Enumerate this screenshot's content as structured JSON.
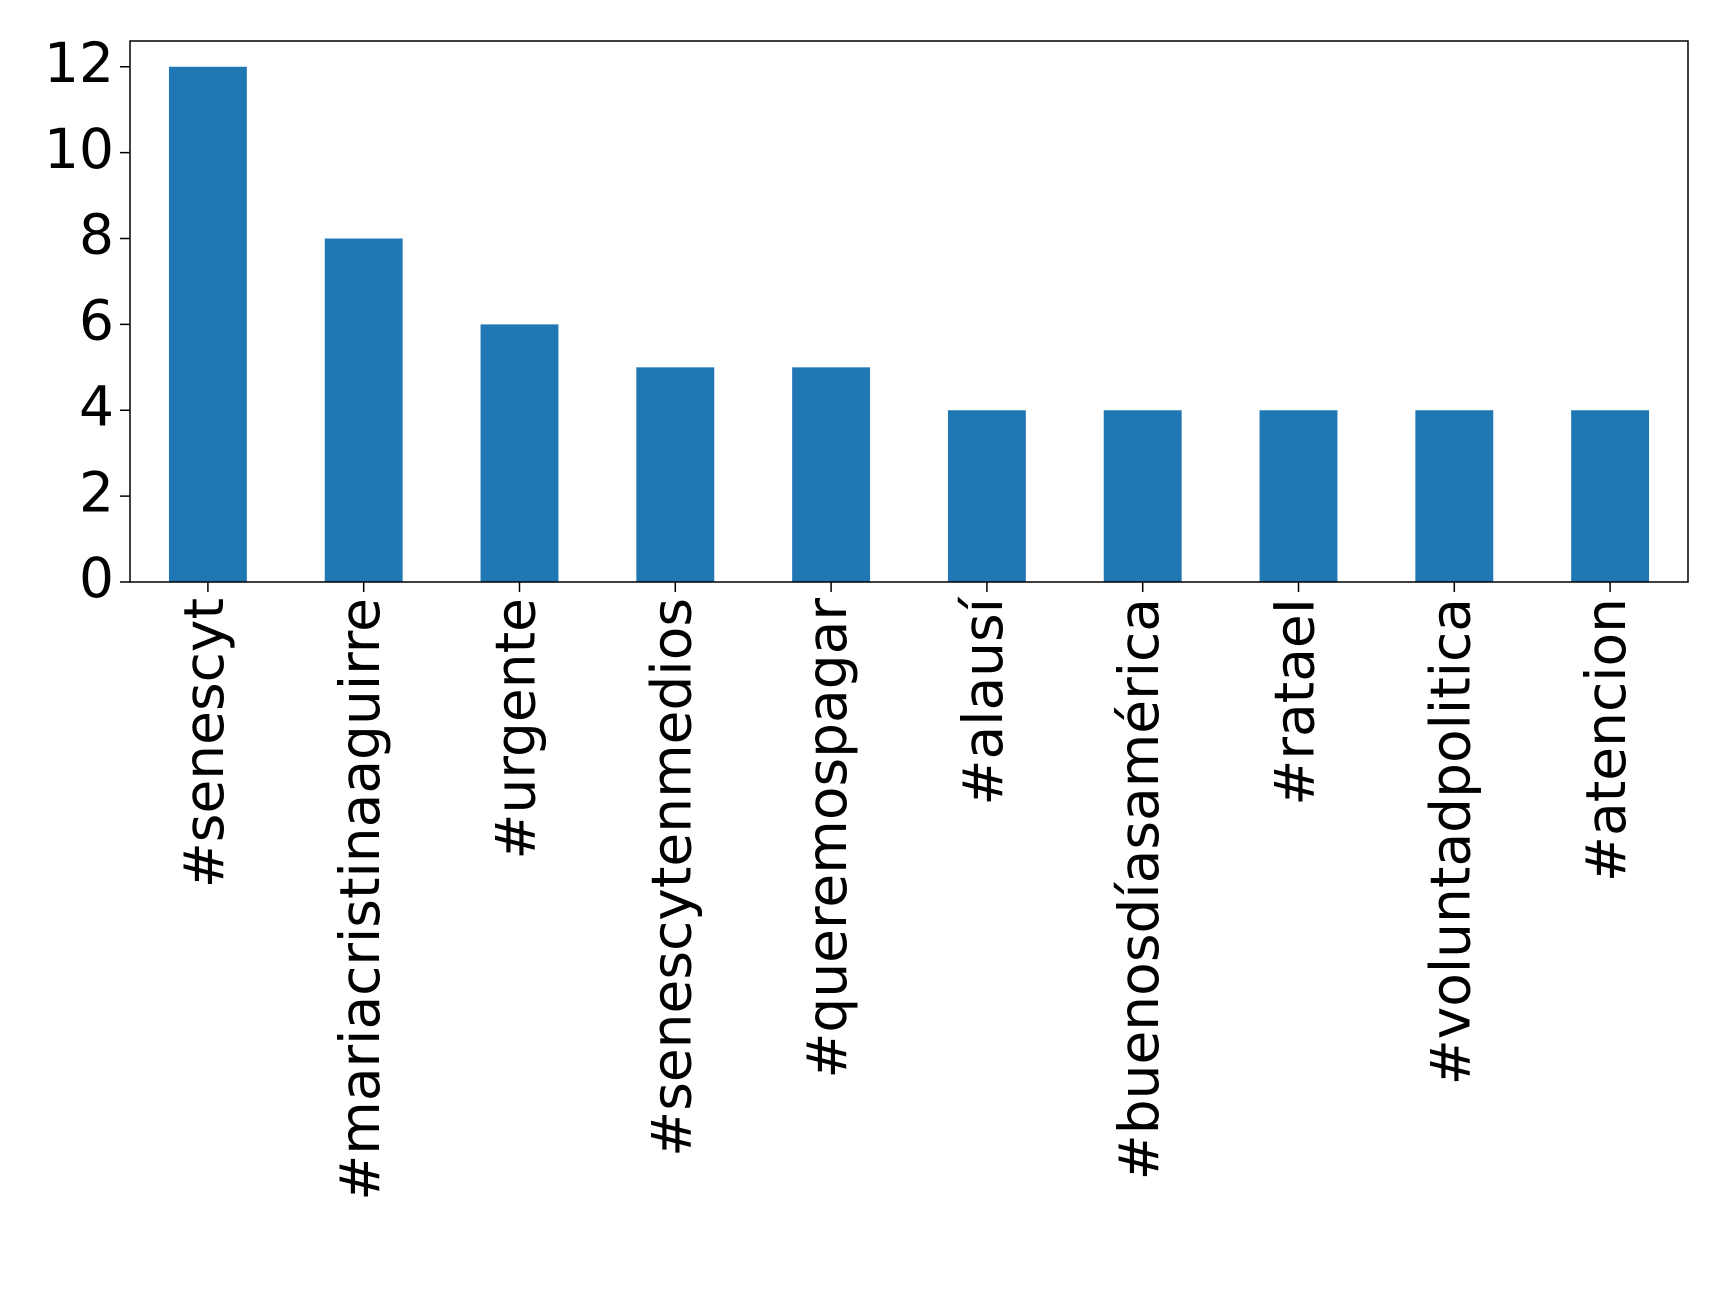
{
  "chart_data": {
    "type": "bar",
    "categories": [
      "#senescyt",
      "#mariacristinaaguirre",
      "#urgente",
      "#senescytenmedios",
      "#queremospagar",
      "#alausí",
      "#buenosdíasamérica",
      "#rataeI",
      "#voluntadpolitica",
      "#atencion"
    ],
    "values": [
      12,
      8,
      6,
      5,
      5,
      4,
      4,
      4,
      4,
      4
    ],
    "color": "#1f77b4",
    "ylim": [
      0,
      12.6
    ],
    "yticks": [
      0,
      2,
      4,
      6,
      8,
      10,
      12
    ],
    "grid": false
  }
}
